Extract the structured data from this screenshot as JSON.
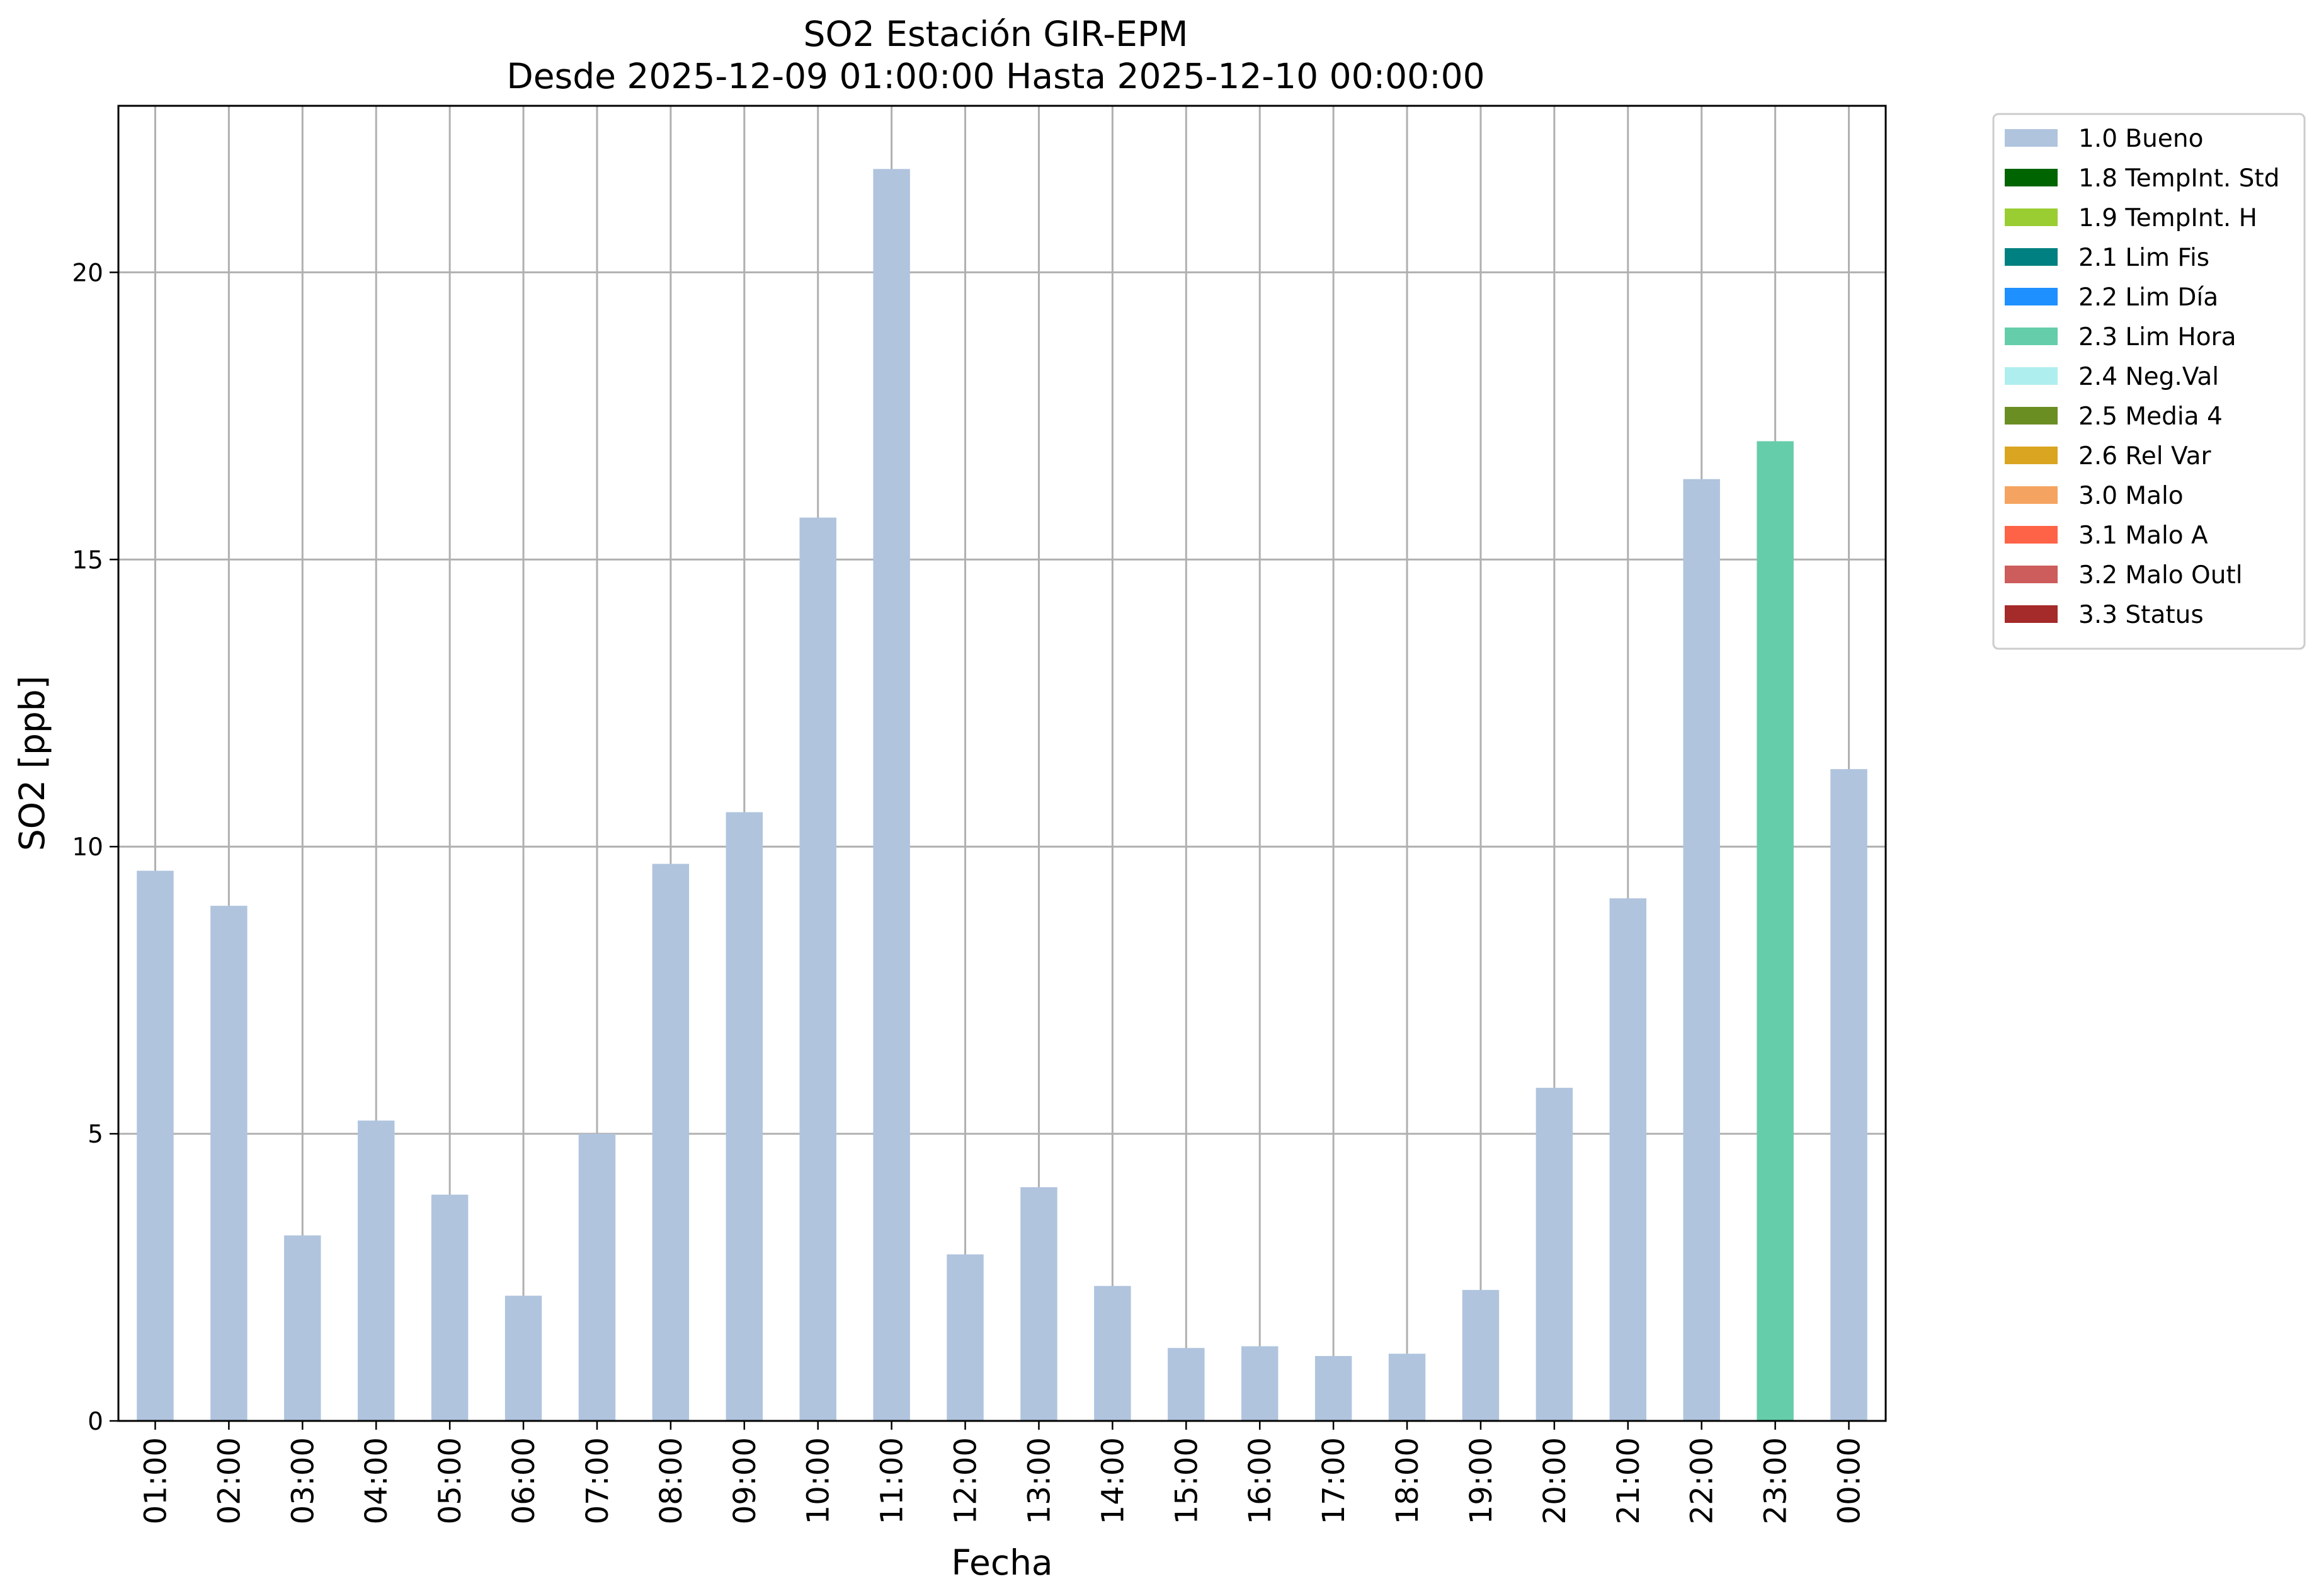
{
  "chart_data": {
    "type": "bar",
    "title_line1": "SO2 Estación GIR-EPM",
    "title_line2": "Desde 2025-12-09 01:00:00 Hasta 2025-12-10 00:00:00",
    "xlabel": "Fecha",
    "ylabel": "SO2 [ppb]",
    "ylim": [
      0,
      22.9
    ],
    "yticks": [
      0,
      5,
      10,
      15,
      20
    ],
    "grid": true,
    "legend_placement": "outside-top-right",
    "categories": [
      "01:00",
      "02:00",
      "03:00",
      "04:00",
      "05:00",
      "06:00",
      "07:00",
      "08:00",
      "09:00",
      "10:00",
      "11:00",
      "12:00",
      "13:00",
      "14:00",
      "15:00",
      "16:00",
      "17:00",
      "18:00",
      "19:00",
      "20:00",
      "21:00",
      "22:00",
      "23:00",
      "00:00"
    ],
    "values": [
      9.58,
      8.97,
      3.23,
      5.23,
      3.94,
      2.18,
      5.0,
      9.7,
      10.6,
      15.73,
      21.8,
      2.9,
      4.07,
      2.35,
      1.27,
      1.3,
      1.13,
      1.17,
      2.28,
      5.8,
      9.1,
      16.4,
      17.06,
      11.35
    ],
    "flags": [
      "1.0 Bueno",
      "1.0 Bueno",
      "1.0 Bueno",
      "1.0 Bueno",
      "1.0 Bueno",
      "1.0 Bueno",
      "1.0 Bueno",
      "1.0 Bueno",
      "1.0 Bueno",
      "1.0 Bueno",
      "1.0 Bueno",
      "1.0 Bueno",
      "1.0 Bueno",
      "1.0 Bueno",
      "1.0 Bueno",
      "1.0 Bueno",
      "1.0 Bueno",
      "1.0 Bueno",
      "1.0 Bueno",
      "1.0 Bueno",
      "1.0 Bueno",
      "1.0 Bueno",
      "2.3 Lim Hora",
      "1.0 Bueno"
    ],
    "legend": [
      {
        "label": "1.0 Bueno",
        "color": "#b0c4de"
      },
      {
        "label": "1.8 TempInt. Std",
        "color": "#006400"
      },
      {
        "label": "1.9 TempInt. H",
        "color": "#9acd32"
      },
      {
        "label": "2.1 Lim Fis",
        "color": "#008080"
      },
      {
        "label": "2.2 Lim Día",
        "color": "#1e90ff"
      },
      {
        "label": "2.3 Lim Hora",
        "color": "#66cdaa"
      },
      {
        "label": "2.4 Neg.Val",
        "color": "#afeeee"
      },
      {
        "label": "2.5 Media 4",
        "color": "#6b8e23"
      },
      {
        "label": "2.6 Rel Var",
        "color": "#daa520"
      },
      {
        "label": "3.0 Malo",
        "color": "#f4a460"
      },
      {
        "label": "3.1 Malo A",
        "color": "#ff6347"
      },
      {
        "label": "3.2 Malo Outl",
        "color": "#cd5c5c"
      },
      {
        "label": "3.3 Status",
        "color": "#a52a2a"
      }
    ]
  }
}
